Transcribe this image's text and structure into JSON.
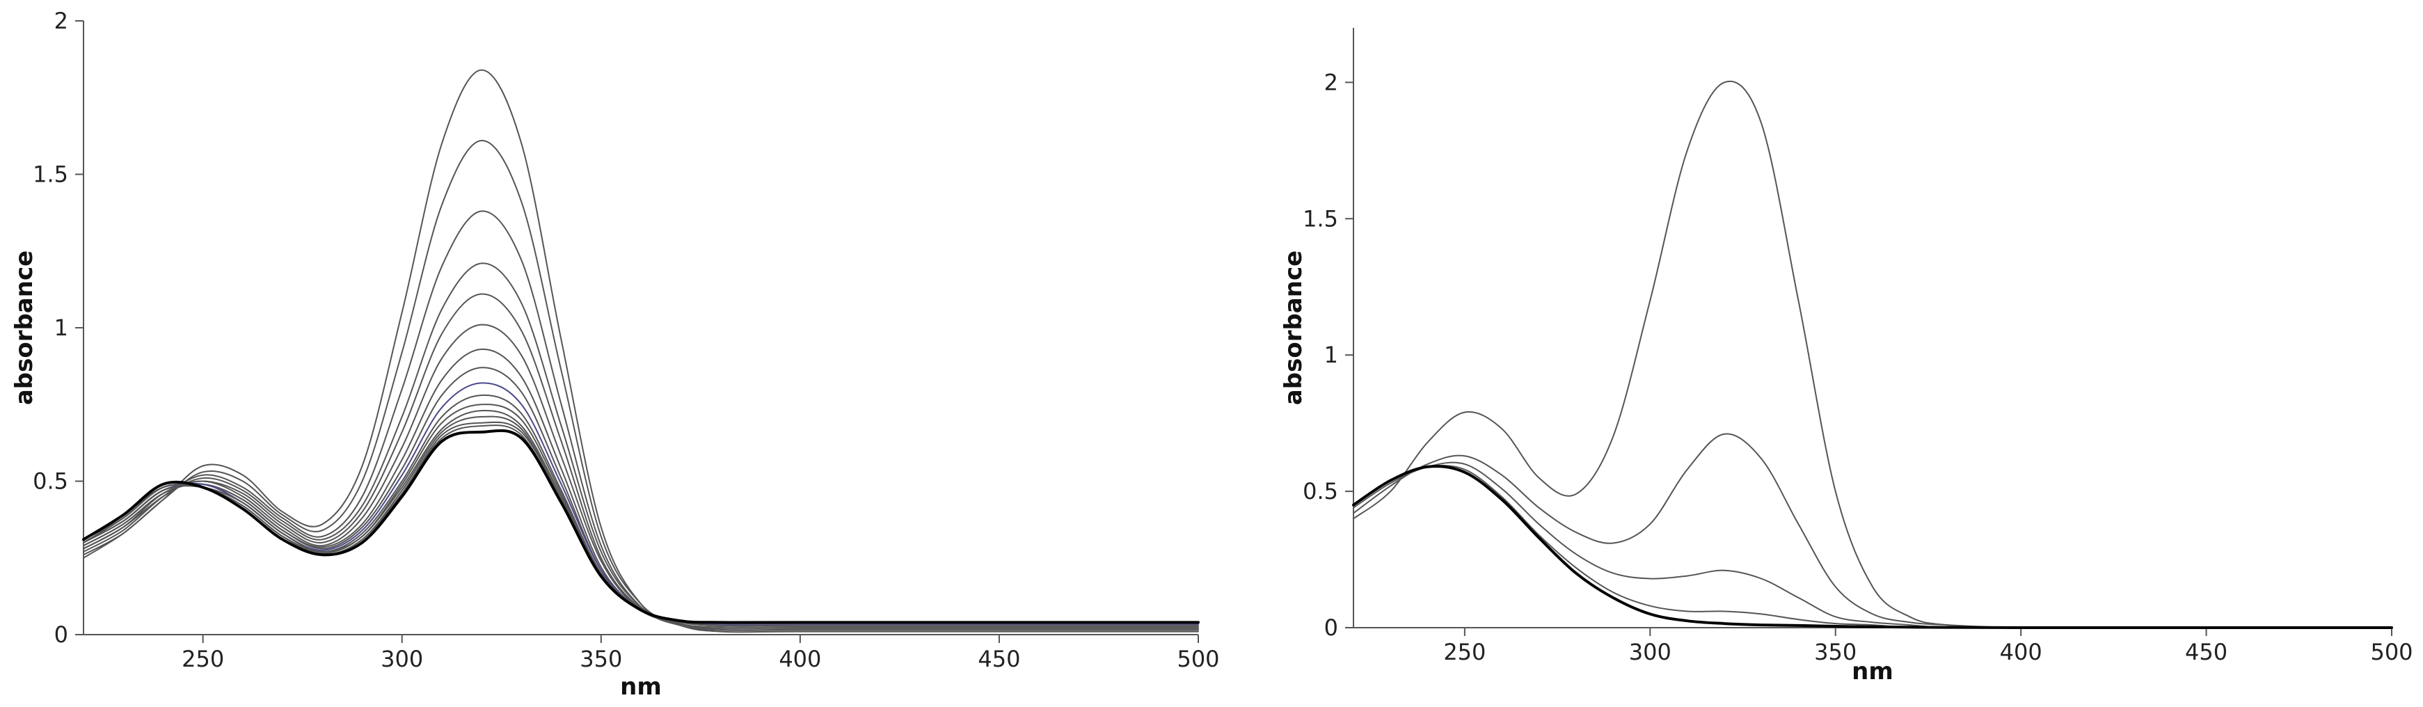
{
  "chart_data": [
    {
      "type": "line",
      "xlabel": "nm",
      "ylabel": "absorbance",
      "xlim": [
        220,
        500
      ],
      "ylim": [
        0,
        2
      ],
      "xticks": [
        250,
        300,
        350,
        400,
        450,
        500
      ],
      "yticks": [
        0,
        0.5,
        1,
        1.5,
        2
      ],
      "ytick_labels": [
        "0",
        "0.5",
        "1",
        "1.5",
        "2"
      ],
      "grid": false,
      "legend": "none",
      "x": [
        220,
        230,
        240,
        250,
        260,
        270,
        280,
        290,
        300,
        310,
        320,
        330,
        340,
        350,
        360,
        370,
        380,
        400,
        450,
        500
      ],
      "series": [
        {
          "color": "#555555",
          "values": [
            0.25,
            0.33,
            0.44,
            0.55,
            0.52,
            0.4,
            0.36,
            0.55,
            1.05,
            1.6,
            1.84,
            1.6,
            0.96,
            0.35,
            0.1,
            0.03,
            0.01,
            0.01,
            0.01,
            0.01
          ]
        },
        {
          "color": "#555555",
          "values": [
            0.26,
            0.33,
            0.44,
            0.53,
            0.5,
            0.39,
            0.34,
            0.5,
            0.92,
            1.4,
            1.61,
            1.41,
            0.86,
            0.32,
            0.1,
            0.03,
            0.015,
            0.015,
            0.015,
            0.015
          ]
        },
        {
          "color": "#555555",
          "values": [
            0.27,
            0.34,
            0.45,
            0.52,
            0.48,
            0.38,
            0.32,
            0.45,
            0.8,
            1.2,
            1.38,
            1.22,
            0.75,
            0.29,
            0.09,
            0.03,
            0.02,
            0.02,
            0.02,
            0.02
          ]
        },
        {
          "color": "#555555",
          "values": [
            0.28,
            0.35,
            0.45,
            0.51,
            0.47,
            0.37,
            0.31,
            0.42,
            0.71,
            1.06,
            1.21,
            1.08,
            0.68,
            0.27,
            0.09,
            0.035,
            0.02,
            0.02,
            0.02,
            0.02
          ]
        },
        {
          "color": "#555555",
          "values": [
            0.28,
            0.35,
            0.46,
            0.5,
            0.46,
            0.36,
            0.3,
            0.4,
            0.66,
            0.98,
            1.11,
            0.99,
            0.63,
            0.25,
            0.085,
            0.035,
            0.025,
            0.025,
            0.025,
            0.025
          ]
        },
        {
          "color": "#555555",
          "values": [
            0.29,
            0.36,
            0.46,
            0.5,
            0.45,
            0.35,
            0.29,
            0.38,
            0.61,
            0.9,
            1.01,
            0.91,
            0.58,
            0.24,
            0.08,
            0.04,
            0.03,
            0.03,
            0.03,
            0.03
          ]
        },
        {
          "color": "#555555",
          "values": [
            0.29,
            0.36,
            0.46,
            0.49,
            0.44,
            0.34,
            0.285,
            0.36,
            0.57,
            0.83,
            0.93,
            0.84,
            0.54,
            0.22,
            0.08,
            0.04,
            0.03,
            0.03,
            0.03,
            0.03
          ]
        },
        {
          "color": "#555555",
          "values": [
            0.3,
            0.37,
            0.47,
            0.49,
            0.44,
            0.34,
            0.28,
            0.35,
            0.54,
            0.78,
            0.87,
            0.79,
            0.51,
            0.21,
            0.08,
            0.04,
            0.035,
            0.035,
            0.035,
            0.035
          ]
        },
        {
          "color": "#4a4a8c",
          "values": [
            0.3,
            0.37,
            0.47,
            0.49,
            0.43,
            0.33,
            0.275,
            0.34,
            0.52,
            0.74,
            0.82,
            0.75,
            0.49,
            0.21,
            0.08,
            0.045,
            0.035,
            0.035,
            0.035,
            0.035
          ]
        },
        {
          "color": "#555555",
          "values": [
            0.3,
            0.37,
            0.47,
            0.48,
            0.43,
            0.33,
            0.27,
            0.33,
            0.5,
            0.71,
            0.78,
            0.72,
            0.47,
            0.2,
            0.08,
            0.045,
            0.04,
            0.04,
            0.04,
            0.04
          ]
        },
        {
          "color": "#555555",
          "values": [
            0.3,
            0.38,
            0.48,
            0.48,
            0.42,
            0.32,
            0.27,
            0.32,
            0.49,
            0.69,
            0.75,
            0.7,
            0.46,
            0.2,
            0.08,
            0.045,
            0.04,
            0.04,
            0.04,
            0.04
          ]
        },
        {
          "color": "#555555",
          "values": [
            0.3,
            0.38,
            0.48,
            0.48,
            0.42,
            0.32,
            0.265,
            0.32,
            0.48,
            0.67,
            0.73,
            0.68,
            0.45,
            0.2,
            0.08,
            0.045,
            0.04,
            0.04,
            0.04,
            0.04
          ]
        },
        {
          "color": "#555555",
          "values": [
            0.3,
            0.38,
            0.48,
            0.48,
            0.42,
            0.32,
            0.26,
            0.31,
            0.47,
            0.66,
            0.71,
            0.67,
            0.44,
            0.195,
            0.08,
            0.045,
            0.04,
            0.04,
            0.04,
            0.04
          ]
        },
        {
          "color": "#555555",
          "values": [
            0.31,
            0.38,
            0.48,
            0.48,
            0.41,
            0.31,
            0.26,
            0.31,
            0.46,
            0.65,
            0.69,
            0.66,
            0.44,
            0.19,
            0.08,
            0.045,
            0.04,
            0.04,
            0.04,
            0.04
          ]
        },
        {
          "color": "#555555",
          "values": [
            0.31,
            0.38,
            0.48,
            0.48,
            0.41,
            0.31,
            0.26,
            0.3,
            0.46,
            0.64,
            0.68,
            0.65,
            0.43,
            0.19,
            0.08,
            0.045,
            0.04,
            0.04,
            0.04,
            0.04
          ]
        },
        {
          "color": "#555555",
          "values": [
            0.31,
            0.39,
            0.48,
            0.48,
            0.41,
            0.31,
            0.26,
            0.3,
            0.45,
            0.63,
            0.66,
            0.64,
            0.43,
            0.19,
            0.08,
            0.045,
            0.04,
            0.04,
            0.04,
            0.04
          ]
        },
        {
          "color": "#000000",
          "values": [
            0.31,
            0.39,
            0.49,
            0.48,
            0.41,
            0.31,
            0.26,
            0.3,
            0.45,
            0.63,
            0.66,
            0.64,
            0.43,
            0.19,
            0.08,
            0.045,
            0.04,
            0.04,
            0.04,
            0.04
          ]
        }
      ]
    },
    {
      "type": "line",
      "xlabel": "nm",
      "ylabel": "absorbance",
      "xlim": [
        220,
        500
      ],
      "ylim": [
        0,
        2.2
      ],
      "xticks": [
        250,
        300,
        350,
        400,
        450,
        500
      ],
      "yticks": [
        0,
        0.5,
        1,
        1.5,
        2
      ],
      "ytick_labels": [
        "0",
        "0.5",
        "1",
        "1.5",
        "2"
      ],
      "grid": false,
      "legend": "none",
      "x": [
        220,
        230,
        240,
        250,
        260,
        270,
        280,
        290,
        300,
        310,
        320,
        330,
        340,
        350,
        360,
        370,
        380,
        400,
        450,
        500
      ],
      "series": [
        {
          "color": "#555555",
          "values": [
            0.4,
            0.5,
            0.68,
            0.79,
            0.73,
            0.55,
            0.49,
            0.7,
            1.2,
            1.75,
            2.0,
            1.85,
            1.2,
            0.5,
            0.15,
            0.04,
            0.01,
            0.0,
            0.0,
            0.0
          ]
        },
        {
          "color": "#555555",
          "values": [
            0.42,
            0.52,
            0.6,
            0.63,
            0.56,
            0.44,
            0.35,
            0.31,
            0.38,
            0.58,
            0.71,
            0.62,
            0.38,
            0.15,
            0.05,
            0.02,
            0.01,
            0.0,
            0.0,
            0.0
          ]
        },
        {
          "color": "#555555",
          "values": [
            0.44,
            0.53,
            0.59,
            0.6,
            0.51,
            0.38,
            0.27,
            0.2,
            0.18,
            0.19,
            0.21,
            0.18,
            0.11,
            0.04,
            0.02,
            0.01,
            0.0,
            0.0,
            0.0,
            0.0
          ]
        },
        {
          "color": "#555555",
          "values": [
            0.45,
            0.54,
            0.59,
            0.58,
            0.48,
            0.34,
            0.22,
            0.13,
            0.08,
            0.06,
            0.06,
            0.05,
            0.03,
            0.015,
            0.01,
            0.0,
            0.0,
            0.0,
            0.0,
            0.0
          ]
        },
        {
          "color": "#000000",
          "values": [
            0.45,
            0.54,
            0.59,
            0.57,
            0.47,
            0.33,
            0.2,
            0.11,
            0.05,
            0.025,
            0.015,
            0.01,
            0.008,
            0.005,
            0.003,
            0.002,
            0.001,
            0.0,
            0.0,
            0.0
          ]
        }
      ]
    }
  ]
}
